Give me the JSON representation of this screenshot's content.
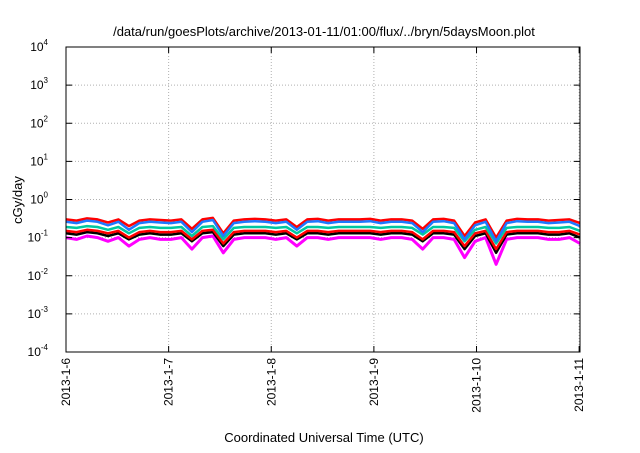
{
  "chart_data": {
    "type": "line",
    "title": "/data/run/goesPlots/archive/2013-01-11/01:00/flux/../bryn/5daysMoon.plot",
    "xlabel": "Coordinated Universal Time (UTC)",
    "ylabel": "cGy/day",
    "yscale": "log",
    "ylim": [
      0.0001,
      10000
    ],
    "xlim": [
      "2013-01-06",
      "2013-01-11 00:12"
    ],
    "grid": true,
    "legend": "none",
    "xticks": [
      "2013-1-6",
      "2013-1-7",
      "2013-1-8",
      "2013-1-9",
      "2013-1-10",
      "2013-1-11"
    ],
    "yticks": [
      {
        "value": 0.0001,
        "base": "10",
        "exp": "-4"
      },
      {
        "value": 0.001,
        "base": "10",
        "exp": "-3"
      },
      {
        "value": 0.01,
        "base": "10",
        "exp": "-2"
      },
      {
        "value": 0.1,
        "base": "10",
        "exp": "-1"
      },
      {
        "value": 1,
        "base": "10",
        "exp": "0"
      },
      {
        "value": 10,
        "base": "10",
        "exp": "1"
      },
      {
        "value": 100,
        "base": "10",
        "exp": "2"
      },
      {
        "value": 1000,
        "base": "10",
        "exp": "3"
      },
      {
        "value": 10000,
        "base": "10",
        "exp": "4"
      }
    ],
    "series": [
      {
        "color": "#ff00ff",
        "values": [
          0.1,
          0.09,
          0.11,
          0.1,
          0.08,
          0.1,
          0.06,
          0.09,
          0.1,
          0.09,
          0.09,
          0.1,
          0.05,
          0.1,
          0.11,
          0.04,
          0.09,
          0.1,
          0.1,
          0.1,
          0.09,
          0.1,
          0.06,
          0.1,
          0.1,
          0.09,
          0.1,
          0.1,
          0.1,
          0.1,
          0.09,
          0.1,
          0.1,
          0.09,
          0.05,
          0.1,
          0.1,
          0.09,
          0.03,
          0.08,
          0.1,
          0.02,
          0.09,
          0.1,
          0.1,
          0.1,
          0.09,
          0.09,
          0.1,
          0.07
        ]
      },
      {
        "color": "#000000",
        "values": [
          0.13,
          0.12,
          0.14,
          0.13,
          0.11,
          0.13,
          0.09,
          0.12,
          0.13,
          0.12,
          0.12,
          0.13,
          0.08,
          0.13,
          0.14,
          0.06,
          0.12,
          0.13,
          0.13,
          0.13,
          0.12,
          0.13,
          0.09,
          0.13,
          0.13,
          0.12,
          0.13,
          0.13,
          0.13,
          0.13,
          0.12,
          0.13,
          0.13,
          0.12,
          0.08,
          0.13,
          0.13,
          0.12,
          0.05,
          0.11,
          0.13,
          0.04,
          0.12,
          0.13,
          0.13,
          0.13,
          0.12,
          0.12,
          0.13,
          0.1
        ]
      },
      {
        "color": "#ff0000",
        "values": [
          0.15,
          0.14,
          0.16,
          0.15,
          0.13,
          0.15,
          0.1,
          0.14,
          0.15,
          0.14,
          0.14,
          0.15,
          0.09,
          0.15,
          0.16,
          0.07,
          0.14,
          0.15,
          0.15,
          0.15,
          0.14,
          0.15,
          0.1,
          0.15,
          0.15,
          0.14,
          0.15,
          0.15,
          0.15,
          0.15,
          0.14,
          0.15,
          0.15,
          0.14,
          0.09,
          0.15,
          0.15,
          0.14,
          0.06,
          0.13,
          0.15,
          0.05,
          0.14,
          0.15,
          0.15,
          0.15,
          0.14,
          0.14,
          0.15,
          0.12
        ]
      },
      {
        "color": "#00c8a0",
        "values": [
          0.19,
          0.18,
          0.2,
          0.19,
          0.16,
          0.19,
          0.13,
          0.18,
          0.19,
          0.18,
          0.18,
          0.19,
          0.11,
          0.19,
          0.2,
          0.09,
          0.18,
          0.19,
          0.19,
          0.19,
          0.18,
          0.19,
          0.13,
          0.19,
          0.19,
          0.18,
          0.19,
          0.19,
          0.19,
          0.19,
          0.18,
          0.19,
          0.19,
          0.18,
          0.12,
          0.19,
          0.19,
          0.18,
          0.08,
          0.16,
          0.19,
          0.07,
          0.18,
          0.19,
          0.19,
          0.19,
          0.18,
          0.18,
          0.19,
          0.15
        ]
      },
      {
        "color": "#ff0000",
        "values": [
          0.3,
          0.28,
          0.32,
          0.3,
          0.25,
          0.3,
          0.2,
          0.28,
          0.3,
          0.29,
          0.28,
          0.3,
          0.17,
          0.3,
          0.33,
          0.13,
          0.28,
          0.3,
          0.31,
          0.3,
          0.28,
          0.3,
          0.19,
          0.3,
          0.31,
          0.28,
          0.3,
          0.3,
          0.3,
          0.31,
          0.28,
          0.3,
          0.3,
          0.28,
          0.17,
          0.3,
          0.31,
          0.28,
          0.11,
          0.25,
          0.3,
          0.1,
          0.28,
          0.31,
          0.3,
          0.3,
          0.28,
          0.29,
          0.3,
          0.24
        ]
      },
      {
        "color": "#1e78ff",
        "values": [
          0.26,
          0.24,
          0.28,
          0.26,
          0.21,
          0.26,
          0.16,
          0.24,
          0.26,
          0.25,
          0.24,
          0.26,
          0.14,
          0.26,
          0.29,
          0.11,
          0.24,
          0.26,
          0.27,
          0.26,
          0.24,
          0.26,
          0.16,
          0.26,
          0.27,
          0.24,
          0.26,
          0.26,
          0.26,
          0.27,
          0.24,
          0.26,
          0.26,
          0.24,
          0.14,
          0.26,
          0.27,
          0.24,
          0.09,
          0.21,
          0.26,
          0.08,
          0.24,
          0.27,
          0.26,
          0.26,
          0.24,
          0.25,
          0.26,
          0.2
        ]
      }
    ]
  }
}
